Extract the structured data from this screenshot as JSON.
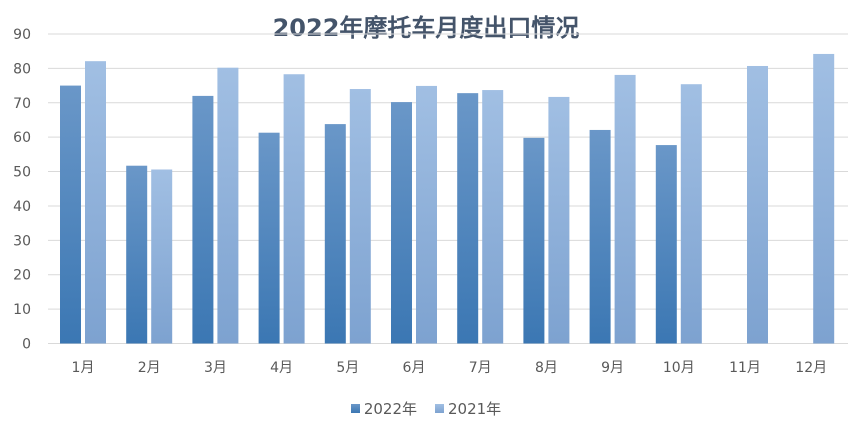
{
  "chart_data": {
    "type": "bar",
    "title": "2022年摩托车月度出口情况",
    "xlabel": "",
    "ylabel": "",
    "categories": [
      "1月",
      "2月",
      "3月",
      "4月",
      "5月",
      "6月",
      "7月",
      "8月",
      "9月",
      "10月",
      "11月",
      "12月"
    ],
    "series": [
      {
        "name": "2022年",
        "color_top": "#6a97c8",
        "color_bottom": "#3b77b3",
        "values": [
          75.0,
          51.7,
          72.0,
          61.3,
          63.8,
          70.2,
          72.8,
          59.8,
          62.1,
          57.7,
          null,
          null
        ]
      },
      {
        "name": "2021年",
        "color_top": "#a1bfe3",
        "color_bottom": "#7da2d0",
        "values": [
          82.1,
          50.6,
          80.2,
          78.3,
          74.0,
          74.9,
          73.7,
          71.7,
          78.1,
          75.4,
          80.7,
          84.2
        ]
      }
    ],
    "ylim": [
      0,
      90
    ],
    "yticks": [
      0,
      10,
      20,
      30,
      40,
      50,
      60,
      70,
      80,
      90
    ],
    "grid": true,
    "legend_position": "bottom"
  },
  "colors": {
    "title": "#44546a",
    "gridline": "#d9d9d9",
    "tick_label": "#595959"
  }
}
